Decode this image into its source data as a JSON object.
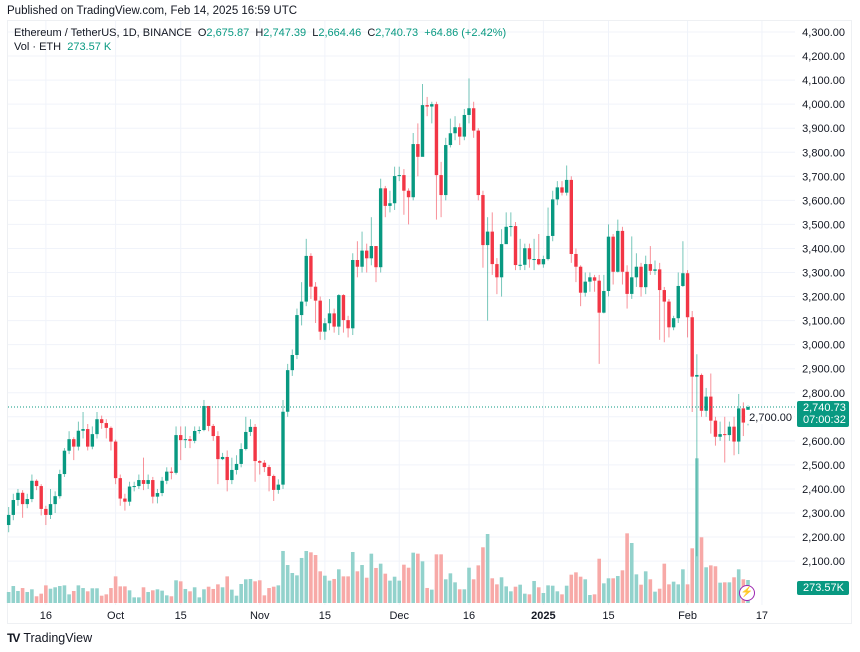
{
  "published": "Published on TradingView.com, Feb 14, 2025 16:59 UTC",
  "legend": {
    "symbol": "Ethereum / TetherUS, 1D, BINANCE",
    "o_label": "O",
    "o": "2,675.87",
    "h_label": "H",
    "h": "2,747.39",
    "l_label": "L",
    "l": "2,664.46",
    "c_label": "C",
    "c": "2,740.73",
    "change": "+64.86 (+2.42%)",
    "vol_label": "Vol · ETH",
    "vol": "273.57 K"
  },
  "last_price_tag": {
    "price": "2,740.73",
    "countdown": "07:00:32"
  },
  "volume_tag": "273.57K",
  "logo_text": "TradingView",
  "colors": {
    "up": "#089981",
    "down": "#F23645",
    "vol_up": "#92d2cc",
    "vol_down": "#f7a9a7",
    "grid": "#f0f3fa",
    "accent": "#9c27b0"
  },
  "chart_data": {
    "type": "candlestick",
    "title": "Ethereum / TetherUS, 1D, BINANCE",
    "last_date": "2025-02-14",
    "ylim": [
      2050,
      4350
    ],
    "grid": true,
    "y_ticks": [
      "4,300.00",
      "4,200.00",
      "4,100.00",
      "4,000.00",
      "3,900.00",
      "3,800.00",
      "3,700.00",
      "3,600.00",
      "3,500.00",
      "3,400.00",
      "3,300.00",
      "3,200.00",
      "3,100.00",
      "3,000.00",
      "2,900.00",
      "2,800.00",
      "2,700.00",
      "2,600.00",
      "2,500.00",
      "2,400.00",
      "2,300.00",
      "2,200.00",
      "2,100.00"
    ],
    "y_tick_values": [
      4300,
      4200,
      4100,
      4000,
      3900,
      3800,
      3700,
      3600,
      3500,
      3400,
      3300,
      3200,
      3100,
      3000,
      2900,
      2800,
      2700,
      2600,
      2500,
      2400,
      2300,
      2200,
      2100
    ],
    "x_ticks": [
      {
        "label": "16",
        "date": "2024-09-16"
      },
      {
        "label": "Oct",
        "date": "2024-10-01"
      },
      {
        "label": "15",
        "date": "2024-10-15"
      },
      {
        "label": "Nov",
        "date": "2024-11-01"
      },
      {
        "label": "15",
        "date": "2024-11-15"
      },
      {
        "label": "Dec",
        "date": "2024-12-01"
      },
      {
        "label": "16",
        "date": "2024-12-16"
      },
      {
        "label": "2025",
        "date": "2025-01-01",
        "bold": true
      },
      {
        "label": "15",
        "date": "2025-01-15"
      },
      {
        "label": "Feb",
        "date": "2025-02-01"
      },
      {
        "label": "17",
        "date": "2025-02-17"
      }
    ],
    "ohlc_fields": [
      "open",
      "high",
      "low",
      "close"
    ],
    "ohlc": [
      [
        2250,
        2325,
        2220,
        2292
      ],
      [
        2292,
        2380,
        2270,
        2354
      ],
      [
        2354,
        2400,
        2330,
        2384
      ],
      [
        2384,
        2395,
        2280,
        2337
      ],
      [
        2337,
        2380,
        2320,
        2358
      ],
      [
        2358,
        2460,
        2345,
        2434
      ],
      [
        2434,
        2440,
        2395,
        2412
      ],
      [
        2412,
        2420,
        2290,
        2317
      ],
      [
        2317,
        2330,
        2250,
        2292
      ],
      [
        2292,
        2400,
        2275,
        2337
      ],
      [
        2337,
        2390,
        2300,
        2370
      ],
      [
        2370,
        2480,
        2360,
        2462
      ],
      [
        2462,
        2570,
        2450,
        2559
      ],
      [
        2559,
        2640,
        2545,
        2607
      ],
      [
        2607,
        2615,
        2520,
        2576
      ],
      [
        2576,
        2680,
        2560,
        2642
      ],
      [
        2642,
        2720,
        2610,
        2649
      ],
      [
        2649,
        2670,
        2560,
        2576
      ],
      [
        2576,
        2660,
        2565,
        2628
      ],
      [
        2628,
        2720,
        2610,
        2690
      ],
      [
        2690,
        2705,
        2650,
        2674
      ],
      [
        2674,
        2690,
        2610,
        2654
      ],
      [
        2654,
        2660,
        2560,
        2597
      ],
      [
        2597,
        2605,
        2420,
        2445
      ],
      [
        2445,
        2460,
        2330,
        2360
      ],
      [
        2360,
        2380,
        2310,
        2347
      ],
      [
        2347,
        2430,
        2330,
        2410
      ],
      [
        2410,
        2430,
        2390,
        2412
      ],
      [
        2412,
        2460,
        2400,
        2437
      ],
      [
        2437,
        2530,
        2395,
        2421
      ],
      [
        2421,
        2460,
        2400,
        2437
      ],
      [
        2437,
        2450,
        2340,
        2368
      ],
      [
        2368,
        2400,
        2340,
        2383
      ],
      [
        2383,
        2450,
        2370,
        2434
      ],
      [
        2434,
        2490,
        2420,
        2472
      ],
      [
        2472,
        2490,
        2440,
        2467
      ],
      [
        2467,
        2660,
        2460,
        2624
      ],
      [
        2624,
        2660,
        2520,
        2603
      ],
      [
        2603,
        2660,
        2570,
        2607
      ],
      [
        2607,
        2620,
        2570,
        2600
      ],
      [
        2600,
        2660,
        2590,
        2641
      ],
      [
        2641,
        2660,
        2630,
        2645
      ],
      [
        2645,
        2770,
        2640,
        2745
      ],
      [
        2745,
        2745,
        2640,
        2662
      ],
      [
        2662,
        2670,
        2600,
        2620
      ],
      [
        2620,
        2640,
        2420,
        2524
      ],
      [
        2524,
        2550,
        2520,
        2533
      ],
      [
        2533,
        2560,
        2390,
        2437
      ],
      [
        2437,
        2530,
        2420,
        2479
      ],
      [
        2479,
        2540,
        2460,
        2504
      ],
      [
        2504,
        2590,
        2490,
        2566
      ],
      [
        2566,
        2700,
        2560,
        2637
      ],
      [
        2637,
        2690,
        2620,
        2658
      ],
      [
        2658,
        2670,
        2430,
        2516
      ],
      [
        2516,
        2520,
        2460,
        2509
      ],
      [
        2509,
        2520,
        2470,
        2491
      ],
      [
        2491,
        2500,
        2390,
        2454
      ],
      [
        2454,
        2460,
        2350,
        2396
      ],
      [
        2396,
        2440,
        2380,
        2418
      ],
      [
        2418,
        2770,
        2400,
        2721
      ],
      [
        2721,
        2920,
        2700,
        2894
      ],
      [
        2894,
        2980,
        2870,
        2957
      ],
      [
        2957,
        3150,
        2940,
        3123
      ],
      [
        3123,
        3260,
        3080,
        3179
      ],
      [
        3179,
        3440,
        3160,
        3369
      ],
      [
        3369,
        3380,
        3190,
        3241
      ],
      [
        3241,
        3260,
        3090,
        3183
      ],
      [
        3183,
        3200,
        3020,
        3054
      ],
      [
        3054,
        3110,
        3020,
        3089
      ],
      [
        3089,
        3190,
        3060,
        3130
      ],
      [
        3130,
        3150,
        3050,
        3075
      ],
      [
        3075,
        3210,
        3040,
        3206
      ],
      [
        3206,
        3210,
        3050,
        3102
      ],
      [
        3102,
        3120,
        3030,
        3068
      ],
      [
        3068,
        3380,
        3040,
        3352
      ],
      [
        3352,
        3430,
        3280,
        3324
      ],
      [
        3324,
        3470,
        3300,
        3391
      ],
      [
        3391,
        3420,
        3300,
        3359
      ],
      [
        3359,
        3530,
        3330,
        3410
      ],
      [
        3410,
        3410,
        3260,
        3322
      ],
      [
        3322,
        3690,
        3300,
        3650
      ],
      [
        3650,
        3660,
        3530,
        3577
      ],
      [
        3577,
        3640,
        3550,
        3588
      ],
      [
        3588,
        3740,
        3560,
        3701
      ],
      [
        3701,
        3740,
        3680,
        3705
      ],
      [
        3705,
        3730,
        3540,
        3640
      ],
      [
        3640,
        3650,
        3500,
        3613
      ],
      [
        3613,
        3880,
        3600,
        3834
      ],
      [
        3834,
        3920,
        3700,
        3781
      ],
      [
        3781,
        4084,
        3790,
        3996
      ],
      [
        3996,
        4030,
        3950,
        3990
      ],
      [
        3990,
        4010,
        3920,
        4000
      ],
      [
        4000,
        4010,
        3520,
        3705
      ],
      [
        3705,
        3760,
        3530,
        3622
      ],
      [
        3622,
        3860,
        3600,
        3830
      ],
      [
        3830,
        3940,
        3820,
        3879
      ],
      [
        3879,
        3950,
        3850,
        3904
      ],
      [
        3904,
        3920,
        3830,
        3865
      ],
      [
        3865,
        3980,
        3850,
        3955
      ],
      [
        3955,
        4107,
        3920,
        3983
      ],
      [
        3983,
        4010,
        3860,
        3890
      ],
      [
        3890,
        3900,
        3600,
        3622
      ],
      [
        3622,
        3640,
        3320,
        3414
      ],
      [
        3414,
        3530,
        3100,
        3470
      ],
      [
        3470,
        3550,
        3290,
        3335
      ],
      [
        3335,
        3360,
        3210,
        3280
      ],
      [
        3280,
        3480,
        3200,
        3418
      ],
      [
        3418,
        3550,
        3430,
        3490
      ],
      [
        3490,
        3550,
        3450,
        3493
      ],
      [
        3493,
        3510,
        3310,
        3331
      ],
      [
        3331,
        3440,
        3310,
        3332
      ],
      [
        3332,
        3420,
        3310,
        3401
      ],
      [
        3401,
        3420,
        3320,
        3355
      ],
      [
        3355,
        3440,
        3310,
        3356
      ],
      [
        3356,
        3460,
        3330,
        3334
      ],
      [
        3334,
        3370,
        3320,
        3356
      ],
      [
        3356,
        3570,
        3350,
        3452
      ],
      [
        3452,
        3640,
        3430,
        3604
      ],
      [
        3604,
        3680,
        3580,
        3654
      ],
      [
        3654,
        3680,
        3620,
        3632
      ],
      [
        3632,
        3745,
        3620,
        3685
      ],
      [
        3685,
        3700,
        3340,
        3377
      ],
      [
        3377,
        3400,
        3260,
        3324
      ],
      [
        3324,
        3330,
        3160,
        3216
      ],
      [
        3216,
        3300,
        3200,
        3262
      ],
      [
        3262,
        3300,
        3220,
        3280
      ],
      [
        3280,
        3290,
        3220,
        3266
      ],
      [
        3266,
        3290,
        2920,
        3133
      ],
      [
        3133,
        3290,
        3130,
        3223
      ],
      [
        3223,
        3500,
        3200,
        3449
      ],
      [
        3449,
        3460,
        3250,
        3303
      ],
      [
        3303,
        3520,
        3300,
        3473
      ],
      [
        3473,
        3490,
        3250,
        3303
      ],
      [
        3303,
        3330,
        3150,
        3211
      ],
      [
        3211,
        3450,
        3190,
        3280
      ],
      [
        3280,
        3380,
        3240,
        3324
      ],
      [
        3324,
        3340,
        3200,
        3239
      ],
      [
        3239,
        3370,
        3210,
        3335
      ],
      [
        3335,
        3410,
        3290,
        3307
      ],
      [
        3307,
        3350,
        3290,
        3313
      ],
      [
        3313,
        3340,
        3020,
        3227
      ],
      [
        3227,
        3240,
        3010,
        3179
      ],
      [
        3179,
        3190,
        3030,
        3072
      ],
      [
        3072,
        3120,
        3060,
        3110
      ],
      [
        3110,
        3300,
        3090,
        3244
      ],
      [
        3244,
        3430,
        3240,
        3297
      ],
      [
        3297,
        3310,
        3030,
        3114
      ],
      [
        3114,
        3140,
        2720,
        2867
      ],
      [
        2867,
        2960,
        2120,
        2874
      ],
      [
        2874,
        2880,
        2700,
        2725
      ],
      [
        2725,
        2820,
        2700,
        2784
      ],
      [
        2784,
        2880,
        2630,
        2684
      ],
      [
        2684,
        2700,
        2580,
        2617
      ],
      [
        2617,
        2680,
        2600,
        2628
      ],
      [
        2628,
        2700,
        2510,
        2624
      ],
      [
        2624,
        2680,
        2600,
        2659
      ],
      [
        2659,
        2700,
        2540,
        2597
      ],
      [
        2597,
        2795,
        2545,
        2735
      ],
      [
        2735,
        2760,
        2620,
        2676
      ],
      [
        2675.87,
        2747.39,
        2664.46,
        2740.73
      ]
    ],
    "volume_unit": "K ETH",
    "volume": [
      131,
      202,
      143,
      178,
      131,
      163,
      80,
      111,
      210,
      170,
      187,
      202,
      210,
      103,
      143,
      210,
      178,
      139,
      175,
      175,
      87,
      103,
      178,
      317,
      198,
      198,
      151,
      67,
      67,
      187,
      131,
      151,
      163,
      147,
      91,
      80,
      270,
      258,
      167,
      139,
      187,
      67,
      163,
      194,
      167,
      222,
      187,
      317,
      159,
      87,
      226,
      282,
      286,
      258,
      270,
      91,
      178,
      194,
      210,
      619,
      452,
      357,
      329,
      536,
      619,
      603,
      571,
      377,
      325,
      266,
      286,
      401,
      317,
      317,
      607,
      377,
      452,
      301,
      587,
      417,
      468,
      349,
      266,
      313,
      266,
      456,
      420,
      599,
      587,
      496,
      179,
      159,
      579,
      579,
      282,
      353,
      246,
      163,
      163,
      420,
      282,
      448,
      663,
      821,
      294,
      222,
      306,
      198,
      139,
      194,
      218,
      111,
      103,
      262,
      187,
      119,
      210,
      206,
      139,
      103,
      206,
      337,
      365,
      313,
      282,
      95,
      103,
      527,
      234,
      294,
      294,
      321,
      389,
      829,
      714,
      341,
      218,
      377,
      282,
      135,
      170,
      468,
      222,
      254,
      222,
      401,
      222,
      651,
      1722,
      782,
      425,
      448,
      437,
      242,
      246,
      246,
      306,
      401,
      282,
      273.57
    ]
  }
}
